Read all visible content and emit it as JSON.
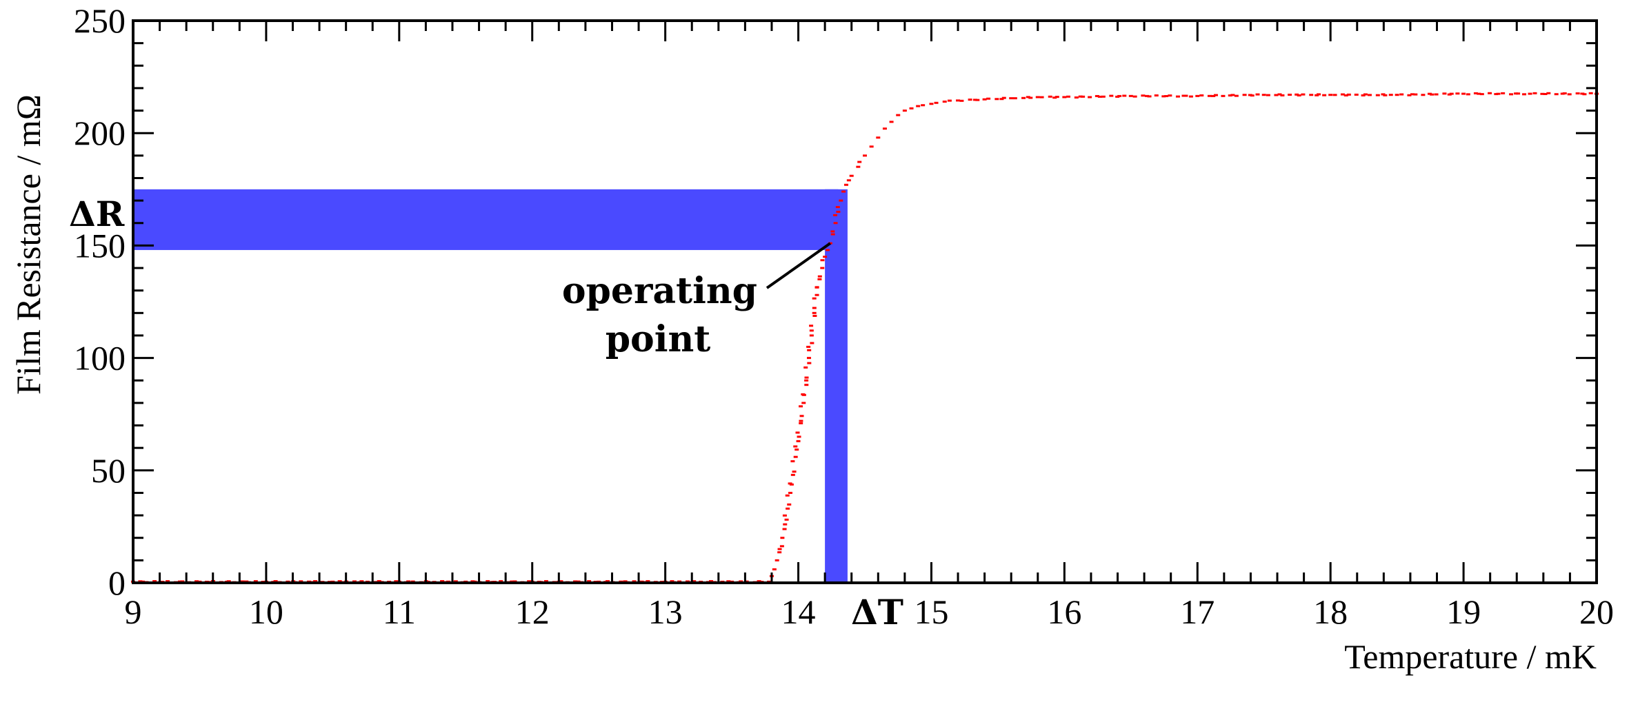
{
  "chart_data": {
    "type": "scatter",
    "xlabel": "Temperature / mK",
    "ylabel": "Film Resistance / mΩ",
    "xlim": [
      9,
      20
    ],
    "ylim": [
      0,
      250
    ],
    "xticks": [
      9,
      10,
      11,
      12,
      13,
      14,
      15,
      16,
      17,
      18,
      19,
      20
    ],
    "yticks": [
      0,
      50,
      100,
      150,
      200,
      250
    ],
    "grid": false,
    "series": [
      {
        "color": "#ff0000",
        "points": [
          [
            9.0,
            0.5
          ],
          [
            9.5,
            0.5
          ],
          [
            10.0,
            0.5
          ],
          [
            10.5,
            0.5
          ],
          [
            11.0,
            0.5
          ],
          [
            11.5,
            0.5
          ],
          [
            12.0,
            0.5
          ],
          [
            12.5,
            0.5
          ],
          [
            13.0,
            0.5
          ],
          [
            13.5,
            0.5
          ],
          [
            13.78,
            0.5
          ],
          [
            13.8,
            3
          ],
          [
            13.82,
            6
          ],
          [
            13.84,
            10
          ],
          [
            13.86,
            15
          ],
          [
            13.88,
            20
          ],
          [
            13.9,
            26
          ],
          [
            13.92,
            33
          ],
          [
            13.94,
            40
          ],
          [
            13.96,
            48
          ],
          [
            13.98,
            56
          ],
          [
            14.0,
            63
          ],
          [
            14.02,
            72
          ],
          [
            14.04,
            80
          ],
          [
            14.06,
            90
          ],
          [
            14.08,
            100
          ],
          [
            14.1,
            110
          ],
          [
            14.12,
            120
          ],
          [
            14.14,
            128
          ],
          [
            14.16,
            135
          ],
          [
            14.18,
            140
          ],
          [
            14.2,
            145
          ],
          [
            14.22,
            148
          ],
          [
            14.24,
            151
          ],
          [
            14.26,
            155
          ],
          [
            14.28,
            160
          ],
          [
            14.3,
            165
          ],
          [
            14.32,
            170
          ],
          [
            14.34,
            174
          ],
          [
            14.36,
            177
          ],
          [
            14.38,
            179
          ],
          [
            14.4,
            181
          ],
          [
            14.45,
            185
          ],
          [
            14.5,
            190
          ],
          [
            14.55,
            194
          ],
          [
            14.6,
            198
          ],
          [
            14.65,
            202
          ],
          [
            14.7,
            205
          ],
          [
            14.75,
            208
          ],
          [
            14.8,
            210
          ],
          [
            14.85,
            211
          ],
          [
            14.9,
            212
          ],
          [
            15.0,
            213
          ],
          [
            15.1,
            214
          ],
          [
            15.2,
            214.5
          ],
          [
            15.4,
            215
          ],
          [
            15.6,
            215.5
          ],
          [
            15.8,
            216
          ],
          [
            16.0,
            216
          ],
          [
            16.5,
            216.5
          ],
          [
            17.0,
            216.5
          ],
          [
            17.5,
            217
          ],
          [
            18.0,
            217
          ],
          [
            18.5,
            217
          ],
          [
            19.0,
            217.5
          ],
          [
            19.5,
            217.5
          ],
          [
            20.0,
            217.5
          ]
        ]
      }
    ],
    "highlight_bands": {
      "color": "#4a4aff",
      "delta_r": {
        "label": "ΔR",
        "y_range": [
          148,
          175
        ],
        "x_range": [
          9,
          14.3
        ]
      },
      "delta_t": {
        "label": "ΔT",
        "x_range": [
          14.2,
          14.37
        ],
        "y_range": [
          0,
          175
        ]
      }
    },
    "annotations": [
      {
        "text": "operating\npoint",
        "lines": [
          "operating",
          "point"
        ],
        "arrow_to": [
          14.24,
          151
        ]
      }
    ]
  }
}
